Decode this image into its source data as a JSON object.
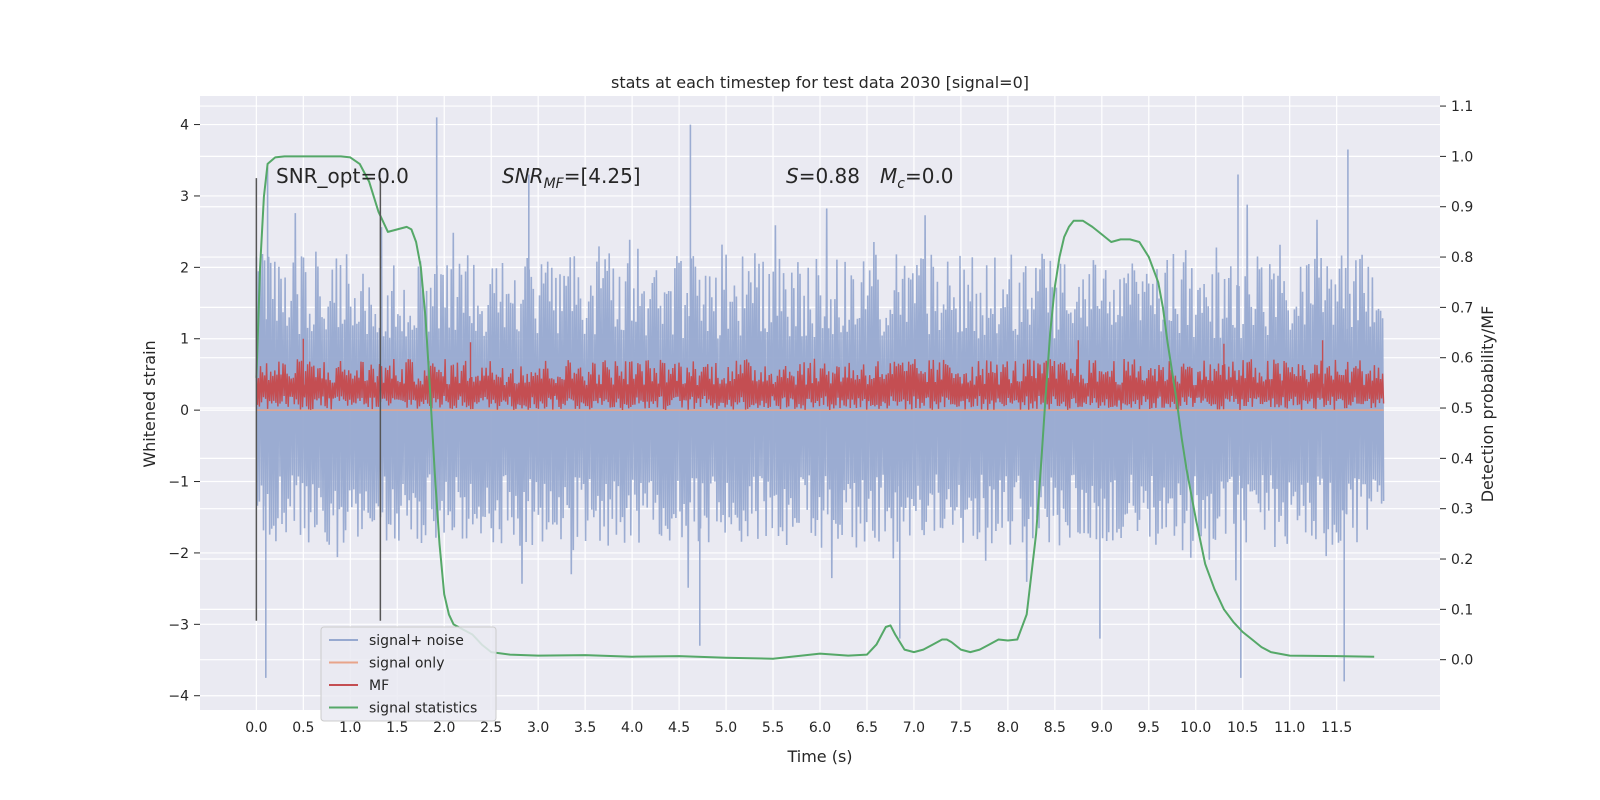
{
  "chart_data": {
    "type": "line",
    "title": "stats at each timestep for test data 2030 [signal=0]",
    "xlabel": "Time (s)",
    "ylabel": "Whitened strain",
    "y2label": "Detection probability/MF",
    "xlim": [
      -0.6,
      12.6
    ],
    "ylim": [
      -4.2,
      4.4
    ],
    "y2lim": [
      -0.1,
      1.12
    ],
    "grid": true,
    "legend_position": "bottom-left",
    "x_ticks": [
      "0.0",
      "0.5",
      "1.0",
      "1.5",
      "2.0",
      "2.5",
      "3.0",
      "3.5",
      "4.0",
      "4.5",
      "5.0",
      "5.5",
      "6.0",
      "6.5",
      "7.0",
      "7.5",
      "8.0",
      "8.5",
      "9.0",
      "9.5",
      "10.0",
      "10.5",
      "11.0",
      "11.5"
    ],
    "y_ticks": [
      "4",
      "3",
      "2",
      "1",
      "0",
      "−1",
      "−2",
      "−3",
      "−4"
    ],
    "y2_ticks": [
      "1.1",
      "1.0",
      "0.9",
      "0.8",
      "0.7",
      "0.6",
      "0.5",
      "0.4",
      "0.3",
      "0.2",
      "0.1",
      "0.0"
    ],
    "annotations": {
      "snr_opt": "SNR_opt=0.0",
      "snr_mf_main": "SNR",
      "snr_mf_sub": "MF",
      "snr_mf_rest": "=[4.25]",
      "s_label": "S",
      "s_value": "=0.88",
      "mc_main": "M",
      "mc_sub": "c",
      "mc_value": "=0.0"
    },
    "vertical_markers": [
      {
        "x": 0.0,
        "y_range": [
          -2.95,
          3.25
        ]
      },
      {
        "x": 1.32,
        "y_range": [
          -2.95,
          3.25
        ]
      }
    ],
    "series": [
      {
        "name": "signal+ noise",
        "color": "#97a9d0",
        "axis": "left",
        "x_range": [
          0.0,
          12.0
        ],
        "typical_envelope": [
          -1.9,
          2.2
        ],
        "notable_peaks": [
          [
            0.12,
            3.4
          ],
          [
            1.92,
            4.1
          ],
          [
            4.62,
            4.0
          ],
          [
            11.62,
            3.65
          ],
          [
            2.9,
            3.3
          ],
          [
            10.45,
            3.3
          ]
        ],
        "notable_troughs": [
          [
            0.1,
            -3.75
          ],
          [
            4.72,
            -3.3
          ],
          [
            10.48,
            -3.75
          ],
          [
            11.58,
            -3.8
          ],
          [
            8.98,
            -3.2
          ],
          [
            6.85,
            -3.2
          ]
        ]
      },
      {
        "name": "signal only",
        "color": "#e8a48a",
        "axis": "left",
        "x": [
          0.0,
          12.0
        ],
        "y": [
          0.0,
          0.0
        ]
      },
      {
        "name": "MF",
        "color": "#c44e52",
        "axis": "left",
        "x_range": [
          0.0,
          12.0
        ],
        "typical_envelope": [
          0.0,
          0.72
        ],
        "notable_peaks": [
          [
            0.5,
            1.0
          ],
          [
            2.28,
            0.95
          ],
          [
            8.75,
            0.98
          ],
          [
            10.3,
            0.93
          ],
          [
            11.35,
            0.98
          ]
        ]
      },
      {
        "name": "signal statistics",
        "color": "#55a868",
        "axis": "right",
        "x": [
          0.0,
          0.04,
          0.08,
          0.12,
          0.2,
          0.3,
          0.5,
          0.7,
          0.9,
          1.0,
          1.1,
          1.2,
          1.3,
          1.4,
          1.5,
          1.6,
          1.65,
          1.7,
          1.75,
          1.8,
          1.85,
          1.9,
          1.95,
          2.0,
          2.05,
          2.1,
          2.2,
          2.3,
          2.4,
          2.5,
          2.7,
          3.0,
          3.5,
          4.0,
          4.5,
          5.0,
          5.5,
          6.0,
          6.3,
          6.5,
          6.6,
          6.7,
          6.75,
          6.8,
          6.9,
          7.0,
          7.1,
          7.2,
          7.3,
          7.35,
          7.4,
          7.5,
          7.6,
          7.7,
          7.8,
          7.9,
          8.0,
          8.1,
          8.2,
          8.3,
          8.35,
          8.4,
          8.45,
          8.5,
          8.55,
          8.6,
          8.65,
          8.7,
          8.8,
          8.9,
          9.0,
          9.1,
          9.2,
          9.3,
          9.4,
          9.5,
          9.6,
          9.65,
          9.7,
          9.75,
          9.8,
          9.85,
          9.9,
          10.0,
          10.1,
          10.2,
          10.3,
          10.4,
          10.5,
          10.6,
          10.7,
          10.8,
          11.0,
          11.5,
          11.9
        ],
        "y": [
          0.56,
          0.78,
          0.92,
          0.985,
          0.998,
          1.0,
          1.0,
          1.0,
          1.0,
          0.998,
          0.985,
          0.95,
          0.89,
          0.85,
          0.855,
          0.86,
          0.855,
          0.83,
          0.78,
          0.68,
          0.53,
          0.37,
          0.23,
          0.13,
          0.09,
          0.07,
          0.06,
          0.05,
          0.03,
          0.015,
          0.01,
          0.008,
          0.009,
          0.006,
          0.007,
          0.004,
          0.002,
          0.012,
          0.008,
          0.01,
          0.03,
          0.065,
          0.068,
          0.05,
          0.02,
          0.015,
          0.02,
          0.03,
          0.04,
          0.04,
          0.035,
          0.02,
          0.015,
          0.02,
          0.03,
          0.04,
          0.038,
          0.04,
          0.09,
          0.25,
          0.38,
          0.52,
          0.65,
          0.74,
          0.8,
          0.84,
          0.86,
          0.872,
          0.872,
          0.86,
          0.845,
          0.83,
          0.835,
          0.835,
          0.83,
          0.8,
          0.75,
          0.7,
          0.63,
          0.57,
          0.51,
          0.44,
          0.38,
          0.28,
          0.19,
          0.14,
          0.1,
          0.075,
          0.055,
          0.04,
          0.025,
          0.015,
          0.008,
          0.007,
          0.006
        ]
      }
    ]
  }
}
